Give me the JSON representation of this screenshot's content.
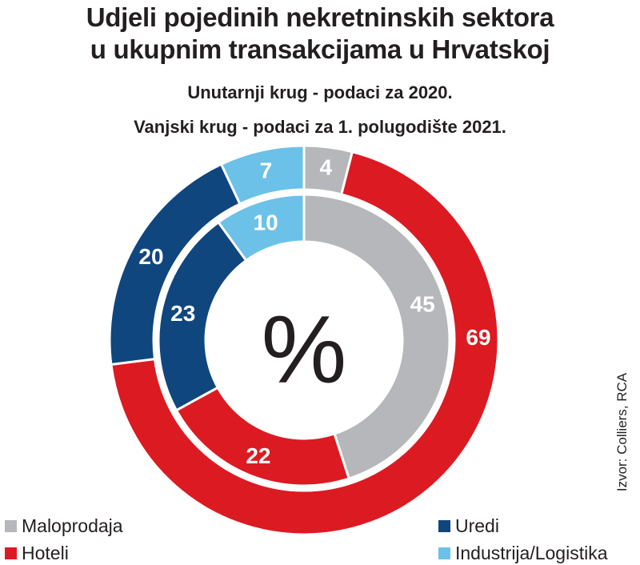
{
  "chart_data": {
    "type": "pie",
    "subtype": "double-donut",
    "title": "Udjeli pojedinih nekretninskih sektora u ukupnim transakcijama u Hrvatskoj",
    "title_lines": [
      "Udjeli pojedinih nekretninskih sektora",
      "u ukupnim transakcijama u Hrvatskoj"
    ],
    "subtitle_lines": [
      "Unutarnji krug - podaci za 2020.",
      "Vanjski krug - podaci za 1. polugodište 2021."
    ],
    "center_label": "%",
    "unit": "%",
    "categories": [
      "Maloprodaja",
      "Hoteli",
      "Uredi",
      "Industrija/Logistika"
    ],
    "colors": {
      "Maloprodaja": "#b6b7ba",
      "Hoteli": "#dc1a22",
      "Uredi": "#10467e",
      "Industrija/Logistika": "#6cc1e8"
    },
    "series": [
      {
        "name": "Unutarnji krug (2020.)",
        "ring": "inner",
        "values": [
          45,
          22,
          23,
          10
        ]
      },
      {
        "name": "Vanjski krug (1. polugodište 2021.)",
        "ring": "outer",
        "values": [
          4,
          69,
          20,
          7
        ]
      }
    ],
    "legend": [
      "Maloprodaja",
      "Hoteli",
      "Uredi",
      "Industrija/Logistika"
    ],
    "legend_placement": "bottom",
    "source": "Izvor: Colliers, RCA"
  }
}
